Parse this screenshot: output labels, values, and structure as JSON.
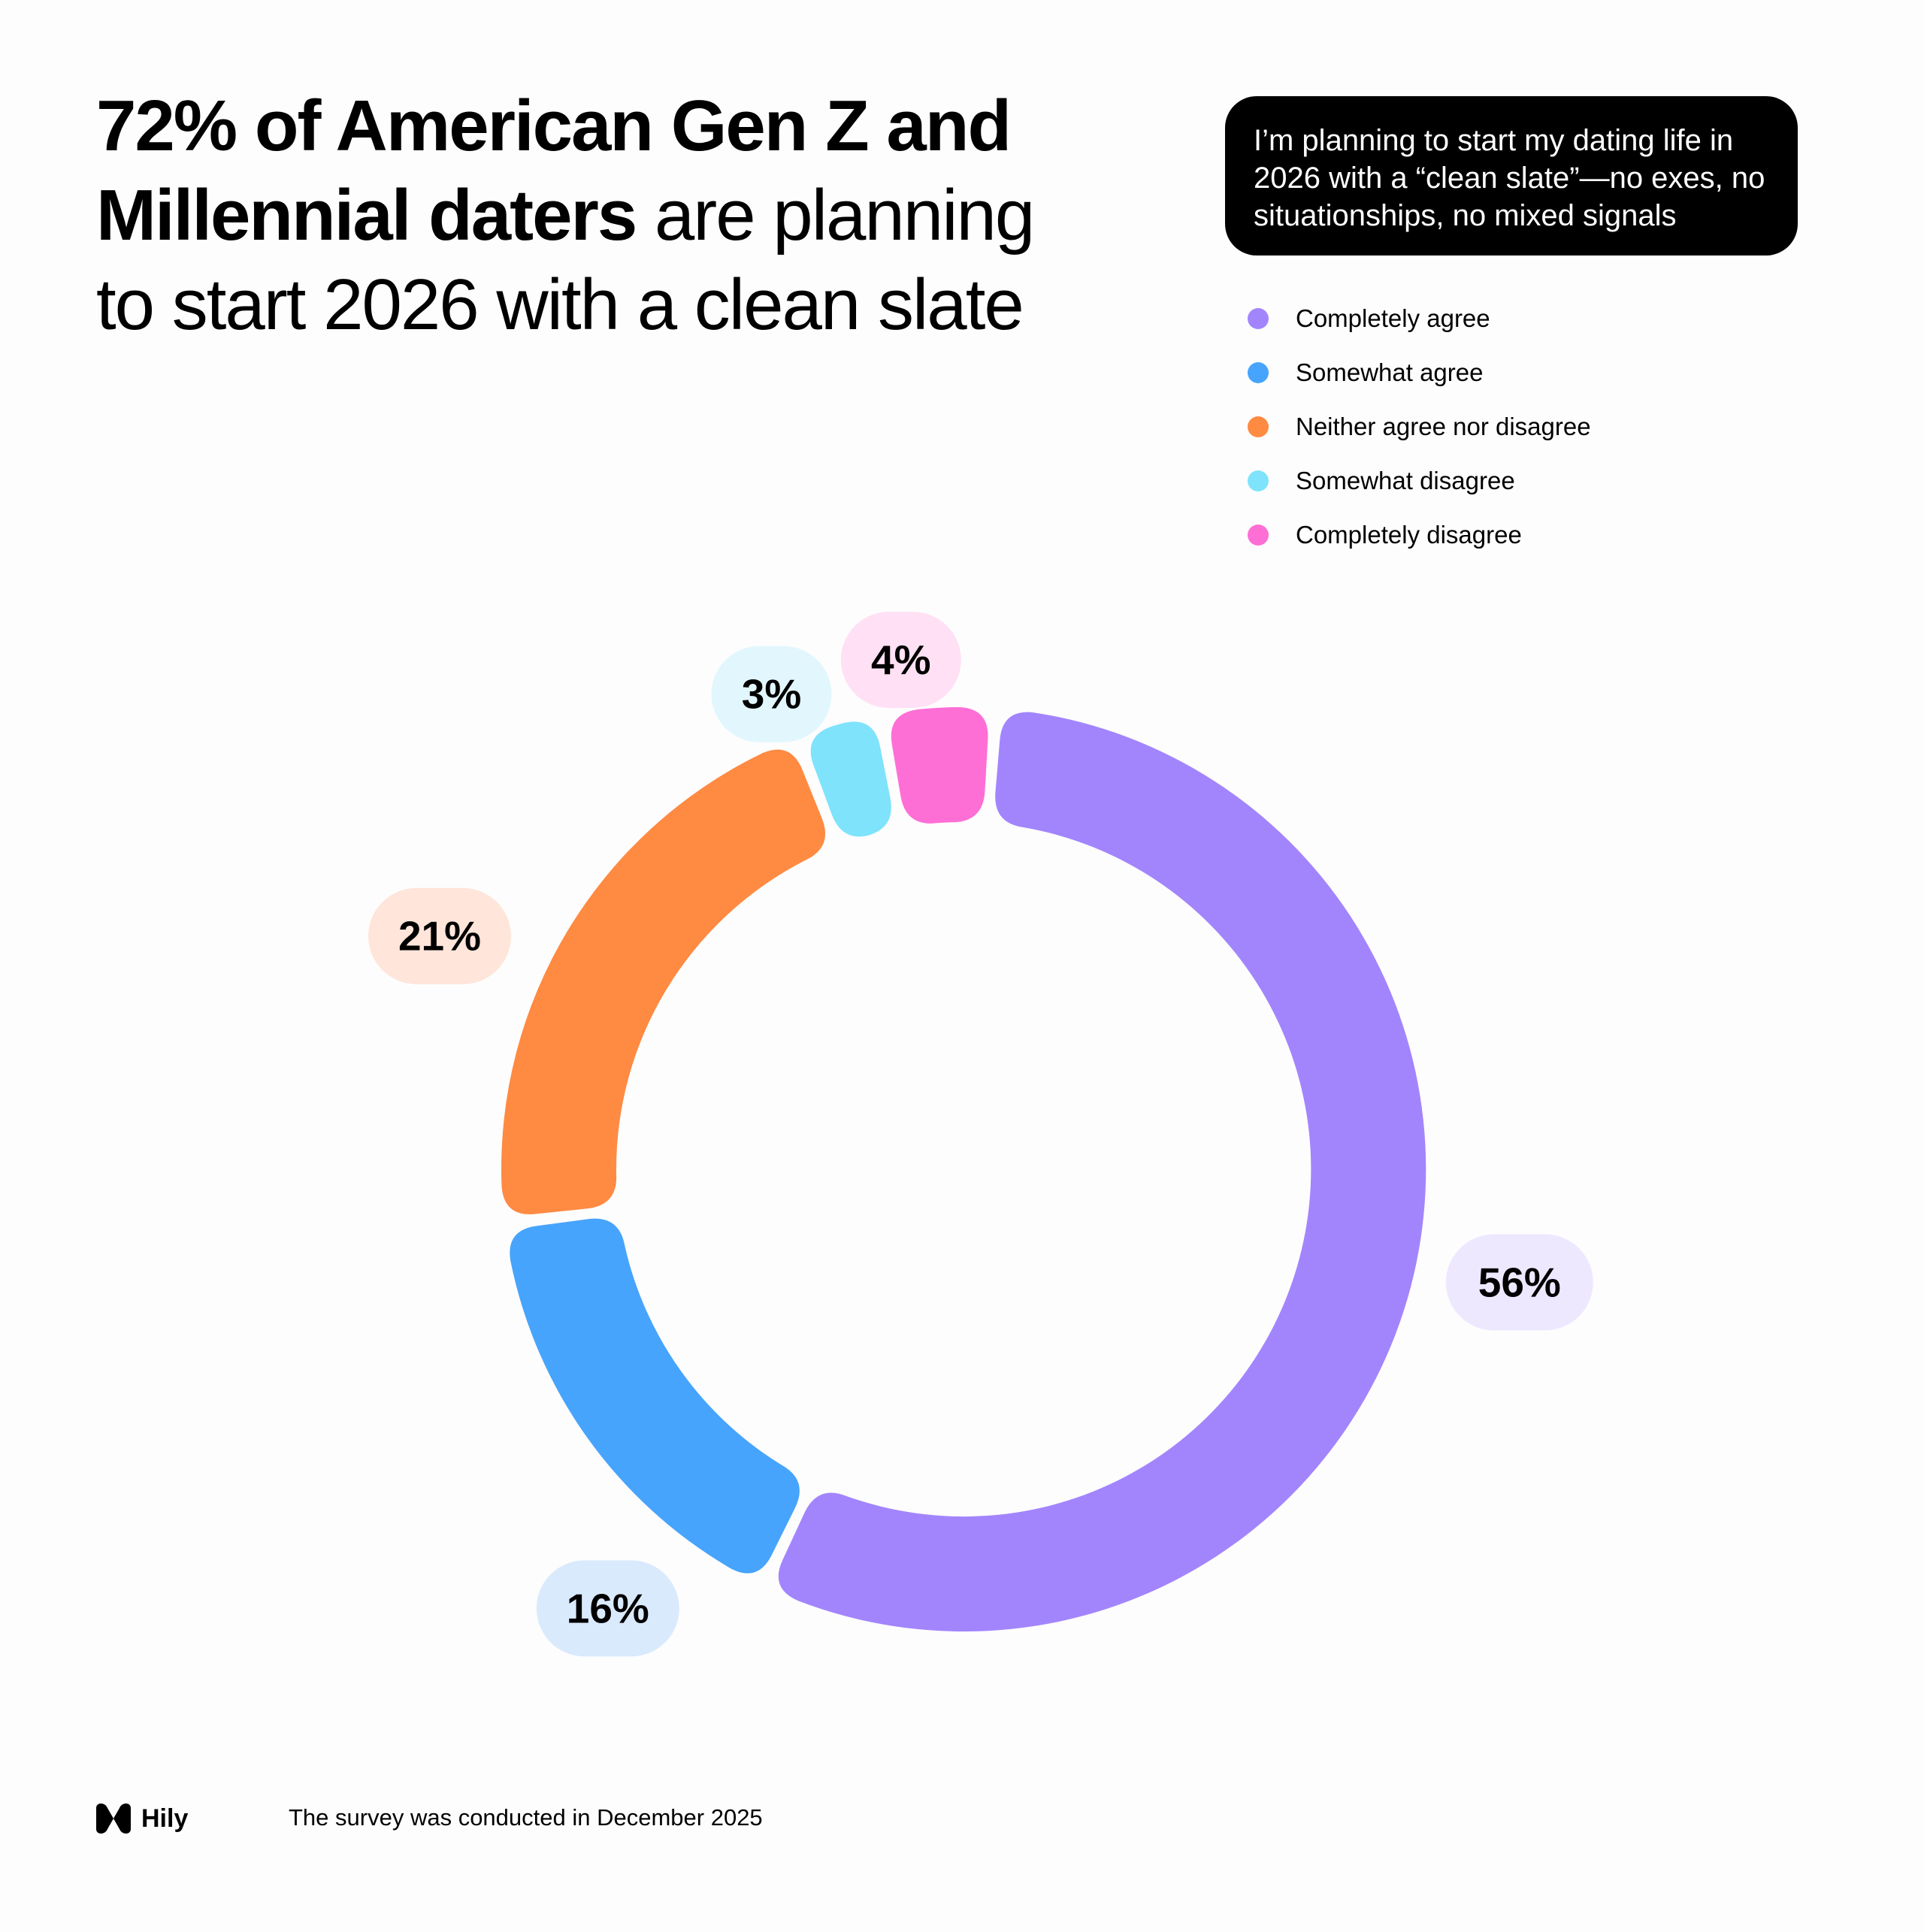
{
  "headline": {
    "bold_line1": "72% of American Gen Z and",
    "bold_line2": "Millennial daters",
    "regular_line2": " are planning",
    "regular_line3": "to start 2026 with a clean slate"
  },
  "statement": "I’m planning to start my dating life in 2026 with a “clean slate”—no exes, no situationships, no mixed signals",
  "chart_data": {
    "type": "pie",
    "variant": "donut",
    "title": "I’m planning to start my dating life in 2026 with a “clean slate”—no exes, no situationships, no mixed signals",
    "legend_position": "top-right",
    "slices": [
      {
        "label": "Completely agree",
        "value": 56,
        "display": "56%",
        "color": "#A285FD",
        "pill_color": "#EEE8FF"
      },
      {
        "label": "Somewhat agree",
        "value": 16,
        "display": "16%",
        "color": "#47A4FC",
        "pill_color": "#DAEAFD"
      },
      {
        "label": "Neither agree nor disagree",
        "value": 21,
        "display": "21%",
        "color": "#FF8A42",
        "pill_color": "#FFE5DA"
      },
      {
        "label": "Somewhat disagree",
        "value": 3,
        "display": "3%",
        "color": "#7FE3FC",
        "pill_color": "#E2F7FD"
      },
      {
        "label": "Completely disagree",
        "value": 4,
        "display": "4%",
        "color": "#FE6FD6",
        "pill_color": "#FFE0F4"
      }
    ]
  },
  "footer": {
    "brand": "Hily",
    "logo_icon": "hily-logo-icon",
    "note": "The survey was conducted in December 2025"
  }
}
